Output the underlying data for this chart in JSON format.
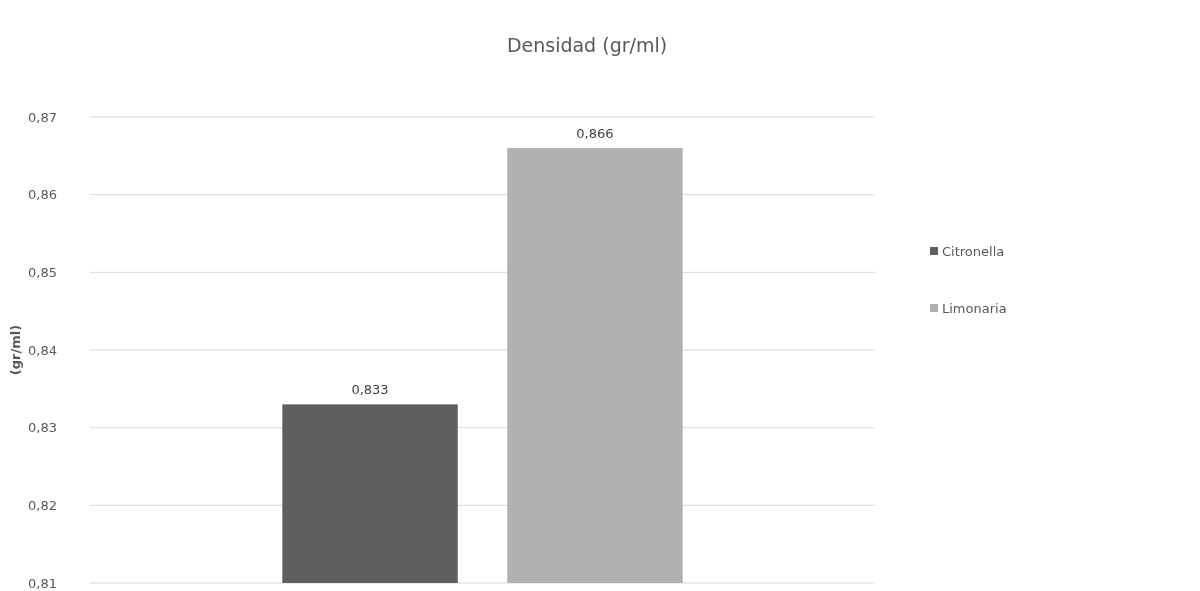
{
  "chart_data": {
    "type": "bar",
    "title": "Densidad  (gr/ml)",
    "ylabel": "(gr/ml)",
    "categories": [
      null
    ],
    "series": [
      {
        "name": "Citronella",
        "color": "#5f5f5f",
        "values": [
          0.833
        ],
        "value_labels": [
          "0,833"
        ]
      },
      {
        "name": "Limonaria",
        "color": "#b0b0b0",
        "values": [
          0.866
        ],
        "value_labels": [
          "0,866"
        ]
      }
    ],
    "ylim": [
      0.81,
      0.87
    ],
    "yticks": [
      {
        "value": 0.81,
        "label": "0,81"
      },
      {
        "value": 0.82,
        "label": "0,82"
      },
      {
        "value": 0.83,
        "label": "0,83"
      },
      {
        "value": 0.84,
        "label": "0,84"
      },
      {
        "value": 0.85,
        "label": "0,85"
      },
      {
        "value": 0.86,
        "label": "0,86"
      },
      {
        "value": 0.87,
        "label": "0,87"
      }
    ],
    "grid": "y",
    "legend": "right"
  }
}
